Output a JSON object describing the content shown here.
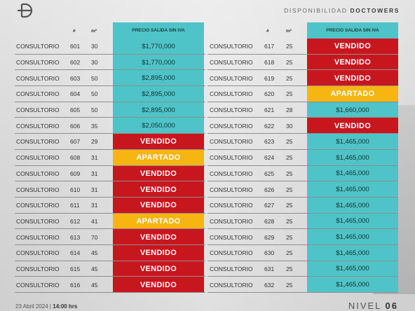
{
  "header": {
    "brand_prefix": "DISPONIBILIDAD",
    "brand_name": "DOCTOWERS",
    "logo_icon": "doctowers-plus-logo"
  },
  "columns": {
    "number": "#",
    "area": "m²",
    "price": "PRECIO SALIDA SIN IVA"
  },
  "colors": {
    "available": "#4ec4c8",
    "sold": "#c8161f",
    "reserved": "#f7b512"
  },
  "left_rows": [
    {
      "type": "CONSULTORIO",
      "num": "601",
      "m2": "30",
      "status": "available",
      "price": "$1,770,000"
    },
    {
      "type": "CONSULTORIO",
      "num": "602",
      "m2": "30",
      "status": "available",
      "price": "$1,770,000"
    },
    {
      "type": "CONSULTORIO",
      "num": "603",
      "m2": "50",
      "status": "available",
      "price": "$2,895,000"
    },
    {
      "type": "CONSULTORIO",
      "num": "604",
      "m2": "50",
      "status": "available",
      "price": "$2,895,000"
    },
    {
      "type": "CONSULTORIO",
      "num": "605",
      "m2": "50",
      "status": "available",
      "price": "$2,895,000"
    },
    {
      "type": "CONSULTORIO",
      "num": "606",
      "m2": "35",
      "status": "available",
      "price": "$2,050,000"
    },
    {
      "type": "CONSULTORIO",
      "num": "607",
      "m2": "29",
      "status": "sold",
      "price": "VENDIDO"
    },
    {
      "type": "CONSULTORIO",
      "num": "608",
      "m2": "31",
      "status": "reserved",
      "price": "APARTADO"
    },
    {
      "type": "CONSULTORIO",
      "num": "609",
      "m2": "31",
      "status": "sold",
      "price": "VENDIDO"
    },
    {
      "type": "CONSULTORIO",
      "num": "610",
      "m2": "31",
      "status": "sold",
      "price": "VENDIDO"
    },
    {
      "type": "CONSULTORIO",
      "num": "611",
      "m2": "31",
      "status": "sold",
      "price": "VENDIDO"
    },
    {
      "type": "CONSULTORIO",
      "num": "612",
      "m2": "41",
      "status": "reserved",
      "price": "APARTADO"
    },
    {
      "type": "CONSULTORIO",
      "num": "613",
      "m2": "70",
      "status": "sold",
      "price": "VENDIDO"
    },
    {
      "type": "CONSULTORIO",
      "num": "614",
      "m2": "45",
      "status": "sold",
      "price": "VENDIDO"
    },
    {
      "type": "CONSULTORIO",
      "num": "615",
      "m2": "45",
      "status": "sold",
      "price": "VENDIDO"
    },
    {
      "type": "CONSULTORIO",
      "num": "616",
      "m2": "45",
      "status": "sold",
      "price": "VENDIDO"
    }
  ],
  "right_rows": [
    {
      "type": "CONSULTORIO",
      "num": "617",
      "m2": "25",
      "status": "sold",
      "price": "VENDIDO"
    },
    {
      "type": "CONSULTORIO",
      "num": "618",
      "m2": "25",
      "status": "sold",
      "price": "VENDIDO"
    },
    {
      "type": "CONSULTORIO",
      "num": "619",
      "m2": "25",
      "status": "sold",
      "price": "VENDIDO"
    },
    {
      "type": "CONSULTORIO",
      "num": "620",
      "m2": "25",
      "status": "reserved",
      "price": "APARTADO"
    },
    {
      "type": "CONSULTORIO",
      "num": "621",
      "m2": "28",
      "status": "available",
      "price": "$1,660,000"
    },
    {
      "type": "CONSULTORIO",
      "num": "622",
      "m2": "30",
      "status": "sold",
      "price": "VENDIDO"
    },
    {
      "type": "CONSULTORIO",
      "num": "623",
      "m2": "25",
      "status": "available",
      "price": "$1,465,000"
    },
    {
      "type": "CONSULTORIO",
      "num": "624",
      "m2": "25",
      "status": "available",
      "price": "$1,465,000"
    },
    {
      "type": "CONSULTORIO",
      "num": "625",
      "m2": "25",
      "status": "available",
      "price": "$1,465,000"
    },
    {
      "type": "CONSULTORIO",
      "num": "626",
      "m2": "25",
      "status": "available",
      "price": "$1,465,000"
    },
    {
      "type": "CONSULTORIO",
      "num": "627",
      "m2": "25",
      "status": "available",
      "price": "$1,465,000"
    },
    {
      "type": "CONSULTORIO",
      "num": "628",
      "m2": "25",
      "status": "available",
      "price": "$1,465,000"
    },
    {
      "type": "CONSULTORIO",
      "num": "629",
      "m2": "25",
      "status": "available",
      "price": "$1,465,000"
    },
    {
      "type": "CONSULTORIO",
      "num": "630",
      "m2": "25",
      "status": "available",
      "price": "$1,465,000"
    },
    {
      "type": "CONSULTORIO",
      "num": "631",
      "m2": "25",
      "status": "available",
      "price": "$1,465,000"
    },
    {
      "type": "CONSULTORIO",
      "num": "632",
      "m2": "25",
      "status": "available",
      "price": "$1,465,000"
    }
  ],
  "footer": {
    "date": "23 Abril 2024 |",
    "time": "14:00 hrs",
    "level_label": "NIVEL",
    "level_number": "06"
  }
}
